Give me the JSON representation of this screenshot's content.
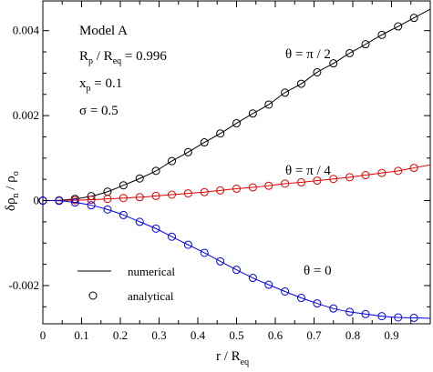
{
  "chart_data": {
    "type": "line",
    "xlabel": {
      "main": "r / R",
      "sub": "eq"
    },
    "ylabel": {
      "a": "δρ",
      "a_sub": "n",
      "b": " / ρ",
      "b_sub": "o"
    },
    "xlim": [
      0,
      1.0
    ],
    "ylim": [
      -0.0029,
      0.0047
    ],
    "xticks": [
      0,
      0.1,
      0.2,
      0.3,
      0.4,
      0.5,
      0.6,
      0.7,
      0.8,
      0.9
    ],
    "xtick_labels": [
      "0",
      "0.1",
      "0.2",
      "0.3",
      "0.4",
      "0.5",
      "0.6",
      "0.7",
      "0.8",
      "0.9"
    ],
    "yticks": [
      -0.002,
      0,
      0.002,
      0.004
    ],
    "ytick_labels": [
      "-0.002",
      "0",
      "0.002",
      "0.004"
    ],
    "annotations": {
      "model": "Model A",
      "ratio": {
        "r1": "R",
        "s1": "p",
        "r2": " / R",
        "s2": "eq",
        "r3": " = 0.996"
      },
      "xp": {
        "a": "x",
        "s": "p",
        "b": " = 0.1"
      },
      "sigma": "σ  = 0.5"
    },
    "series": [
      {
        "name": "θ = π / 2",
        "color": "#000000",
        "x": [
          0,
          0.042,
          0.083,
          0.125,
          0.167,
          0.208,
          0.25,
          0.292,
          0.333,
          0.375,
          0.417,
          0.458,
          0.5,
          0.542,
          0.583,
          0.625,
          0.667,
          0.708,
          0.75,
          0.792,
          0.833,
          0.875,
          0.917,
          0.958
        ],
        "y": [
          0,
          7e-06,
          4e-05,
          0.000105,
          0.00021,
          0.00036,
          0.00052,
          0.0007,
          0.00093,
          0.00114,
          0.00137,
          0.00158,
          0.00182,
          0.00205,
          0.00226,
          0.00254,
          0.00275,
          0.00302,
          0.00323,
          0.00347,
          0.00368,
          0.0039,
          0.0041,
          0.0043
        ]
      },
      {
        "name": "θ = π / 4",
        "color": "#e00000",
        "x": [
          0,
          0.042,
          0.083,
          0.125,
          0.167,
          0.208,
          0.25,
          0.292,
          0.333,
          0.375,
          0.417,
          0.458,
          0.5,
          0.542,
          0.583,
          0.625,
          0.667,
          0.708,
          0.75,
          0.792,
          0.833,
          0.875,
          0.917,
          0.958
        ],
        "y": [
          0,
          2e-06,
          1e-05,
          2e-05,
          4e-05,
          6e-05,
          8e-05,
          0.00011,
          0.00014,
          0.00017,
          0.0002,
          0.00024,
          0.00028,
          0.00031,
          0.00035,
          0.0004,
          0.00043,
          0.00047,
          0.00051,
          0.00055,
          0.0006,
          0.00065,
          0.0007,
          0.00077
        ]
      },
      {
        "name": "θ = 0",
        "color": "#0000e0",
        "x": [
          0,
          0.042,
          0.083,
          0.125,
          0.167,
          0.208,
          0.25,
          0.292,
          0.333,
          0.375,
          0.417,
          0.458,
          0.5,
          0.542,
          0.583,
          0.625,
          0.667,
          0.708,
          0.75,
          0.792,
          0.833,
          0.875,
          0.917,
          0.958
        ],
        "y": [
          0,
          -5e-06,
          -4.5e-05,
          -0.00011,
          -0.00021,
          -0.00034,
          -0.0005,
          -0.00066,
          -0.00085,
          -0.00104,
          -0.00123,
          -0.00143,
          -0.00163,
          -0.00182,
          -0.00198,
          -0.00214,
          -0.00229,
          -0.00242,
          -0.00254,
          -0.00262,
          -0.00267,
          -0.00272,
          -0.00275,
          -0.00276
        ]
      }
    ],
    "legend": {
      "line_label": "numerical",
      "marker_label": "analytical",
      "placement": "bottom-left"
    },
    "grid": false
  }
}
